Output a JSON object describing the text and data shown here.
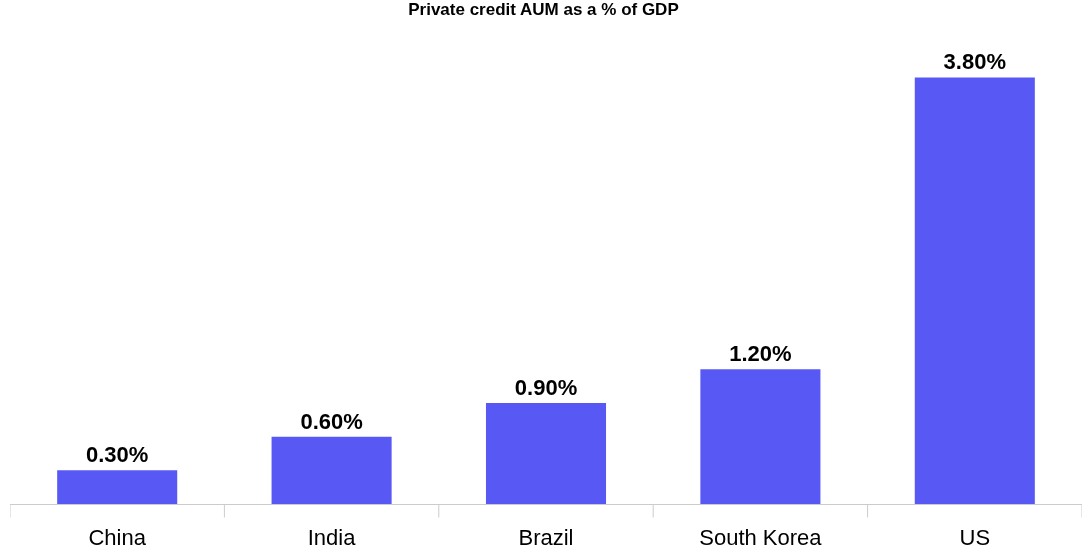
{
  "chart_data": {
    "type": "bar",
    "title": "Private credit AUM as a % of GDP",
    "categories": [
      "China",
      "India",
      "Brazil",
      "South Korea",
      "US"
    ],
    "values": [
      0.3,
      0.6,
      0.9,
      1.2,
      3.8
    ],
    "value_labels": [
      "0.30%",
      "0.60%",
      "0.90%",
      "1.20%",
      "3.80%"
    ],
    "color": "#5858f5"
  }
}
